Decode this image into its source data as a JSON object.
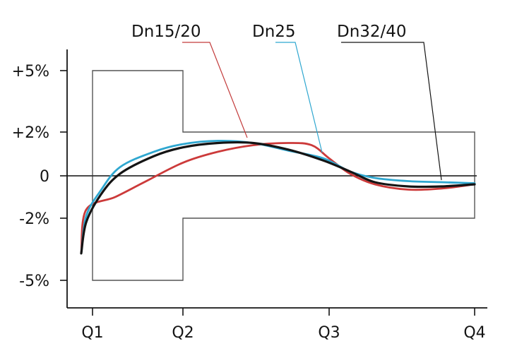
{
  "chart_data": {
    "type": "line",
    "title": "",
    "xlabel": "",
    "ylabel": "",
    "x_ticks": [
      "Q1",
      "Q2",
      "Q3",
      "Q4"
    ],
    "y_ticks": [
      "+5%",
      "+2%",
      "0",
      "-2%",
      "-5%"
    ],
    "y_tick_values": [
      5,
      2,
      0,
      -2,
      -5
    ],
    "ylim": [
      -6.6,
      6.7
    ],
    "grid": false,
    "legend": "annotated labels above plot, pointing to curves",
    "tolerance_band": {
      "color": "#555555",
      "segments": [
        {
          "from": "Q1",
          "to": "Q2",
          "upper": 5,
          "lower": -5
        },
        {
          "from": "Q2",
          "to": "Q4",
          "upper": 2,
          "lower": -2
        }
      ]
    },
    "series": [
      {
        "name": "Dn15/20",
        "color": "#cc3a3a",
        "points": [
          [
            0.9,
            -3.7
          ],
          [
            1.0,
            -1.6
          ],
          [
            1.3,
            -1.0
          ],
          [
            1.6,
            -0.3
          ],
          [
            2.0,
            0.6
          ],
          [
            2.3,
            1.1
          ],
          [
            2.6,
            1.4
          ],
          [
            2.9,
            1.5
          ],
          [
            3.1,
            1.4
          ],
          [
            3.25,
            0.8
          ],
          [
            3.5,
            0.1
          ],
          [
            3.8,
            -0.4
          ],
          [
            4.2,
            -0.65
          ],
          [
            4.6,
            -0.6
          ],
          [
            5.0,
            -0.4
          ]
        ]
      },
      {
        "name": "Dn25",
        "color": "#2fa7d0",
        "points": [
          [
            0.9,
            -3.7
          ],
          [
            1.0,
            -1.9
          ],
          [
            1.15,
            -0.7
          ],
          [
            1.35,
            0.4
          ],
          [
            1.7,
            1.1
          ],
          [
            2.0,
            1.45
          ],
          [
            2.3,
            1.6
          ],
          [
            2.6,
            1.5
          ],
          [
            2.9,
            1.15
          ],
          [
            3.2,
            0.8
          ],
          [
            3.5,
            0.2
          ],
          [
            3.8,
            -0.1
          ],
          [
            4.2,
            -0.25
          ],
          [
            4.6,
            -0.3
          ],
          [
            5.0,
            -0.35
          ]
        ]
      },
      {
        "name": "Dn32/40",
        "color": "#141414",
        "points": [
          [
            0.9,
            -3.7
          ],
          [
            1.0,
            -2.2
          ],
          [
            1.15,
            -0.9
          ],
          [
            1.35,
            0.1
          ],
          [
            1.7,
            0.9
          ],
          [
            2.0,
            1.3
          ],
          [
            2.3,
            1.5
          ],
          [
            2.6,
            1.5
          ],
          [
            2.9,
            1.2
          ],
          [
            3.2,
            0.7
          ],
          [
            3.5,
            0.2
          ],
          [
            3.8,
            -0.3
          ],
          [
            4.2,
            -0.5
          ],
          [
            4.6,
            -0.5
          ],
          [
            5.0,
            -0.4
          ]
        ]
      }
    ]
  },
  "colors": {
    "axis": "#141414",
    "tolerance": "#555555",
    "leader_red": "#c33b3b",
    "leader_blue": "#2fa7d0",
    "leader_black": "#141414"
  }
}
